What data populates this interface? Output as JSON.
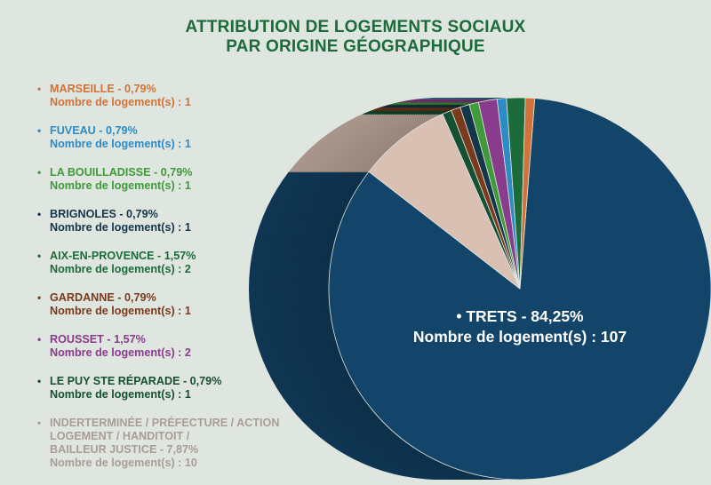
{
  "title": {
    "line1": "ATTRIBUTION DE LOGEMENTS SOCIAUX",
    "line2": "PAR ORIGINE GÉOGRAPHIQUE"
  },
  "colors": {
    "title": "#1c6b3a",
    "background": "#dfe5df"
  },
  "legend": [
    {
      "lines": [
        "MARSEILLE - 0,79%",
        "Nombre de logement(s) : 1"
      ],
      "color": "#d0733a"
    },
    {
      "lines": [
        "FUVEAU - 0,79%",
        "Nombre de logement(s) : 1"
      ],
      "color": "#2d8bc6"
    },
    {
      "lines": [
        "LA BOUILLADISSE - 0,79%",
        "Nombre de logement(s) : 1"
      ],
      "color": "#3f9a3a"
    },
    {
      "lines": [
        "BRIGNOLES - 0,79%",
        "Nombre de logement(s) : 1"
      ],
      "color": "#14364a"
    },
    {
      "lines": [
        "AIX-EN-PROVENCE - 1,57%",
        "Nombre de logement(s) : 2"
      ],
      "color": "#1c6b3a"
    },
    {
      "lines": [
        "GARDANNE - 0,79%",
        "Nombre de logement(s) : 1"
      ],
      "color": "#7a3a1c"
    },
    {
      "lines": [
        "ROUSSET - 1,57%",
        "Nombre de logement(s) : 2"
      ],
      "color": "#8a3c8c"
    },
    {
      "lines": [
        "LE PUY STE RÉPARADE - 0,79%",
        "Nombre de logement(s) : 1"
      ],
      "color": "#165032"
    },
    {
      "lines": [
        "INDERTERMINÉE / PRÉFECTURE / ACTION",
        "LOGEMENT / HANDITOIT /",
        "BAILLEUR JUSTICE - 7,87%",
        "Nombre de logement(s) : 10"
      ],
      "color": "#a99d96"
    }
  ],
  "callout": {
    "line1": "• TRETS - 84,25%",
    "line2": "Nombre de logement(s) : 107"
  },
  "chart_data": {
    "type": "pie",
    "title": "ATTRIBUTION DE LOGEMENTS SOCIAUX PAR ORIGINE GÉOGRAPHIQUE",
    "unit": "Nombre de logement(s)",
    "slices": [
      {
        "label": "TRETS",
        "percent": 84.25,
        "count": 107,
        "color": "#13456a"
      },
      {
        "label": "INDERTERMINÉE / PRÉFECTURE / ACTION LOGEMENT / HANDITOIT / BAILLEUR JUSTICE",
        "percent": 7.87,
        "count": 10,
        "color": "#d9c0b3"
      },
      {
        "label": "LE PUY STE RÉPARADE",
        "percent": 0.79,
        "count": 1,
        "color": "#165032"
      },
      {
        "label": "GARDANNE",
        "percent": 0.79,
        "count": 1,
        "color": "#7a3a1c"
      },
      {
        "label": "BRIGNOLES",
        "percent": 0.79,
        "count": 1,
        "color": "#14364a"
      },
      {
        "label": "LA BOUILLADISSE",
        "percent": 0.79,
        "count": 1,
        "color": "#3f9a3a"
      },
      {
        "label": "ROUSSET",
        "percent": 1.57,
        "count": 2,
        "color": "#8a3c8c"
      },
      {
        "label": "FUVEAU",
        "percent": 0.79,
        "count": 1,
        "color": "#2d8bc6"
      },
      {
        "label": "AIX-EN-PROVENCE",
        "percent": 1.57,
        "count": 2,
        "color": "#1c6b3a"
      },
      {
        "label": "MARSEILLE",
        "percent": 0.79,
        "count": 1,
        "color": "#d0733a"
      }
    ]
  }
}
